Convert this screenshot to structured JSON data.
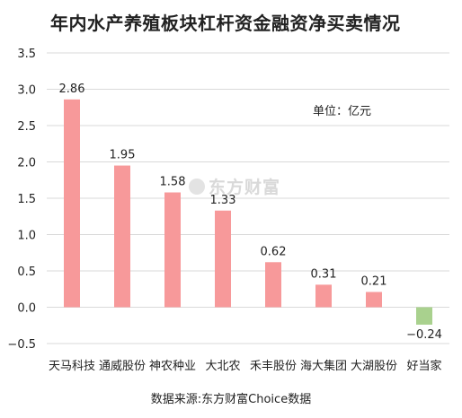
{
  "chart_data": {
    "type": "bar",
    "title": "年内水产养殖板块杠杆资金融资净买卖情况",
    "unit": "单位：亿元",
    "source": "数据来源:东方财富Choice数据",
    "watermark": "东方财富",
    "categories": [
      "天马科技",
      "通威股份",
      "神农种业",
      "大北农",
      "禾丰股份",
      "海大集团",
      "大湖股份",
      "好当家"
    ],
    "values": [
      2.86,
      1.95,
      1.58,
      1.33,
      0.62,
      0.31,
      0.21,
      -0.24
    ],
    "value_labels": [
      "2.86",
      "1.95",
      "1.58",
      "1.33",
      "0.62",
      "0.31",
      "0.21",
      "−0.24"
    ],
    "yticks": [
      "3.5",
      "3.0",
      "2.5",
      "2.0",
      "1.5",
      "1.0",
      "0.5",
      "0.0",
      "−0.5"
    ],
    "ylim": [
      -0.5,
      3.5
    ],
    "grid": true,
    "colors": {
      "positive": "#f7999a",
      "negative": "#a9d18e",
      "grid": "#d9d9d9"
    }
  }
}
